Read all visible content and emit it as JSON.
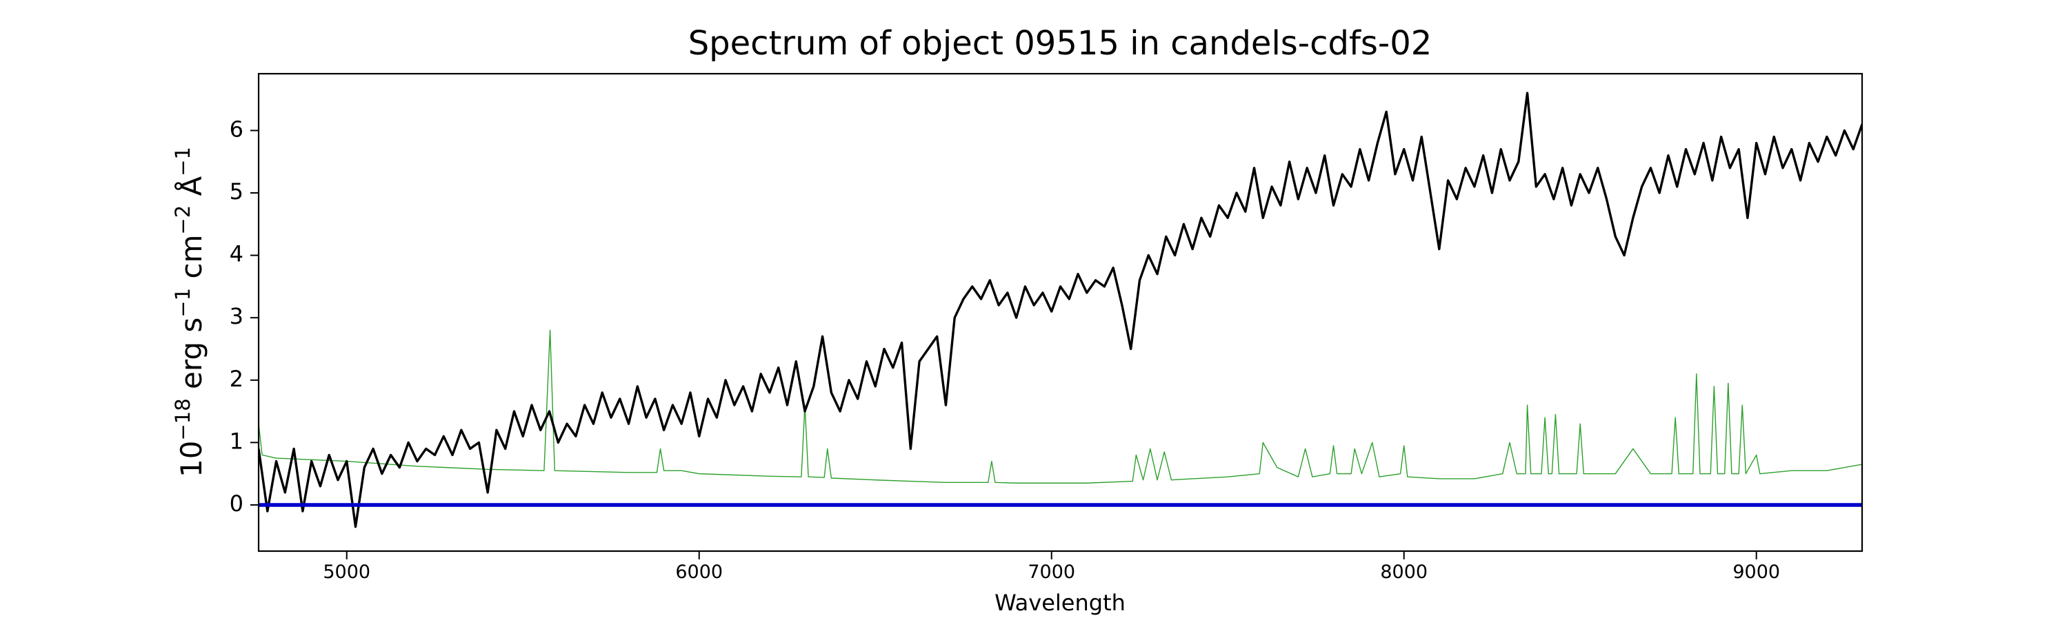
{
  "chart_data": {
    "type": "line",
    "title": "Spectrum of object 09515 in candels-cdfs-02",
    "xlabel": "Wavelength",
    "ylabel": [
      "10",
      "−18",
      " erg s",
      "−1",
      " cm",
      "−2",
      " Å",
      "−1"
    ],
    "xlim": [
      4750,
      9300
    ],
    "ylim": [
      -0.74,
      6.91
    ],
    "xticks": [
      5000,
      6000,
      7000,
      8000,
      9000
    ],
    "yticks": [
      0,
      1,
      2,
      3,
      4,
      5,
      6
    ],
    "series": [
      {
        "color": "#2ca02c",
        "width": 1.4,
        "x": [
          4750,
          4760,
          4800,
          5000,
          5200,
          5400,
          5560,
          5577,
          5590,
          5800,
          5880,
          5890,
          5900,
          5950,
          6000,
          6200,
          6290,
          6300,
          6310,
          6355,
          6364,
          6375,
          6500,
          6600,
          6700,
          6820,
          6830,
          6840,
          6900,
          7000,
          7100,
          7230,
          7240,
          7260,
          7280,
          7300,
          7320,
          7340,
          7400,
          7500,
          7590,
          7600,
          7640,
          7700,
          7720,
          7740,
          7790,
          7800,
          7810,
          7850,
          7860,
          7880,
          7910,
          7930,
          7990,
          8000,
          8010,
          8100,
          8200,
          8280,
          8300,
          8320,
          8345,
          8350,
          8360,
          8390,
          8400,
          8410,
          8420,
          8430,
          8440,
          8490,
          8500,
          8510,
          8600,
          8650,
          8700,
          8760,
          8770,
          8780,
          8820,
          8830,
          8840,
          8870,
          8880,
          8890,
          8910,
          8920,
          8930,
          8950,
          8960,
          8970,
          9000,
          9010,
          9100,
          9200,
          9300
        ],
        "values": [
          1.3,
          0.8,
          0.75,
          0.7,
          0.62,
          0.57,
          0.55,
          2.8,
          0.55,
          0.52,
          0.52,
          0.9,
          0.55,
          0.55,
          0.5,
          0.46,
          0.45,
          1.6,
          0.45,
          0.44,
          0.9,
          0.43,
          0.4,
          0.38,
          0.36,
          0.36,
          0.7,
          0.36,
          0.35,
          0.35,
          0.35,
          0.38,
          0.8,
          0.4,
          0.9,
          0.4,
          0.85,
          0.4,
          0.42,
          0.45,
          0.5,
          1.0,
          0.6,
          0.45,
          0.9,
          0.45,
          0.5,
          0.95,
          0.5,
          0.5,
          0.9,
          0.5,
          1.0,
          0.45,
          0.5,
          0.95,
          0.45,
          0.42,
          0.42,
          0.5,
          1.0,
          0.5,
          0.5,
          1.6,
          0.5,
          0.5,
          1.4,
          0.5,
          0.5,
          1.45,
          0.5,
          0.5,
          1.3,
          0.5,
          0.5,
          0.9,
          0.5,
          0.5,
          1.4,
          0.5,
          0.5,
          2.1,
          0.5,
          0.5,
          1.9,
          0.5,
          0.5,
          1.95,
          0.5,
          0.5,
          1.6,
          0.5,
          0.8,
          0.5,
          0.55,
          0.55,
          0.65
        ]
      },
      {
        "color": "#000000",
        "width": 3.4,
        "x": [
          4750,
          4775,
          4800,
          4825,
          4850,
          4875,
          4900,
          4925,
          4950,
          4975,
          5000,
          5025,
          5050,
          5075,
          5100,
          5125,
          5150,
          5175,
          5200,
          5225,
          5250,
          5275,
          5300,
          5325,
          5350,
          5375,
          5400,
          5425,
          5450,
          5475,
          5500,
          5525,
          5550,
          5575,
          5600,
          5625,
          5650,
          5675,
          5700,
          5725,
          5750,
          5775,
          5800,
          5825,
          5850,
          5875,
          5900,
          5925,
          5950,
          5975,
          6000,
          6025,
          6050,
          6075,
          6100,
          6125,
          6150,
          6175,
          6200,
          6225,
          6250,
          6275,
          6300,
          6325,
          6350,
          6375,
          6400,
          6425,
          6450,
          6475,
          6500,
          6525,
          6550,
          6575,
          6600,
          6625,
          6650,
          6675,
          6700,
          6725,
          6750,
          6775,
          6800,
          6825,
          6850,
          6875,
          6900,
          6925,
          6950,
          6975,
          7000,
          7025,
          7050,
          7075,
          7100,
          7125,
          7150,
          7175,
          7200,
          7225,
          7250,
          7275,
          7300,
          7325,
          7350,
          7375,
          7400,
          7425,
          7450,
          7475,
          7500,
          7525,
          7550,
          7575,
          7600,
          7625,
          7650,
          7675,
          7700,
          7725,
          7750,
          7775,
          7800,
          7825,
          7850,
          7875,
          7900,
          7925,
          7950,
          7975,
          8000,
          8025,
          8050,
          8075,
          8100,
          8125,
          8150,
          8175,
          8200,
          8225,
          8250,
          8275,
          8300,
          8325,
          8350,
          8375,
          8400,
          8425,
          8450,
          8475,
          8500,
          8525,
          8550,
          8575,
          8600,
          8625,
          8650,
          8675,
          8700,
          8725,
          8750,
          8775,
          8800,
          8825,
          8850,
          8875,
          8900,
          8925,
          8950,
          8975,
          9000,
          9025,
          9050,
          9075,
          9100,
          9125,
          9150,
          9175,
          9200,
          9225,
          9250,
          9275,
          9300
        ],
        "values": [
          0.9,
          -0.1,
          0.7,
          0.2,
          0.9,
          -0.1,
          0.7,
          0.3,
          0.8,
          0.4,
          0.7,
          -0.35,
          0.6,
          0.9,
          0.5,
          0.8,
          0.6,
          1.0,
          0.7,
          0.9,
          0.8,
          1.1,
          0.8,
          1.2,
          0.9,
          1.0,
          0.2,
          1.2,
          0.9,
          1.5,
          1.1,
          1.6,
          1.2,
          1.5,
          1.0,
          1.3,
          1.1,
          1.6,
          1.3,
          1.8,
          1.4,
          1.7,
          1.3,
          1.9,
          1.4,
          1.7,
          1.2,
          1.6,
          1.3,
          1.8,
          1.1,
          1.7,
          1.4,
          2.0,
          1.6,
          1.9,
          1.5,
          2.1,
          1.8,
          2.2,
          1.6,
          2.3,
          1.5,
          1.9,
          2.7,
          1.8,
          1.5,
          2.0,
          1.7,
          2.3,
          1.9,
          2.5,
          2.2,
          2.6,
          0.9,
          2.3,
          2.5,
          2.7,
          1.6,
          3.0,
          3.3,
          3.5,
          3.3,
          3.6,
          3.2,
          3.4,
          3.0,
          3.5,
          3.2,
          3.4,
          3.1,
          3.5,
          3.3,
          3.7,
          3.4,
          3.6,
          3.5,
          3.8,
          3.2,
          2.5,
          3.6,
          4.0,
          3.7,
          4.3,
          4.0,
          4.5,
          4.1,
          4.6,
          4.3,
          4.8,
          4.6,
          5.0,
          4.7,
          5.4,
          4.6,
          5.1,
          4.8,
          5.5,
          4.9,
          5.4,
          5.0,
          5.6,
          4.8,
          5.3,
          5.1,
          5.7,
          5.2,
          5.8,
          6.3,
          5.3,
          5.7,
          5.2,
          5.9,
          5.0,
          4.1,
          5.2,
          4.9,
          5.4,
          5.1,
          5.6,
          5.0,
          5.7,
          5.2,
          5.5,
          6.6,
          5.1,
          5.3,
          4.9,
          5.4,
          4.8,
          5.3,
          5.0,
          5.4,
          4.9,
          4.3,
          4.0,
          4.6,
          5.1,
          5.4,
          5.0,
          5.6,
          5.1,
          5.7,
          5.3,
          5.8,
          5.2,
          5.9,
          5.4,
          5.7,
          4.6,
          5.8,
          5.3,
          5.9,
          5.4,
          5.7,
          5.2,
          5.8,
          5.5,
          5.9,
          5.6,
          6.0,
          5.7,
          6.1
        ]
      },
      {
        "color": "#0000cc",
        "width": 5.5,
        "x": [
          4750,
          9300
        ],
        "values": [
          0,
          0
        ]
      }
    ]
  }
}
